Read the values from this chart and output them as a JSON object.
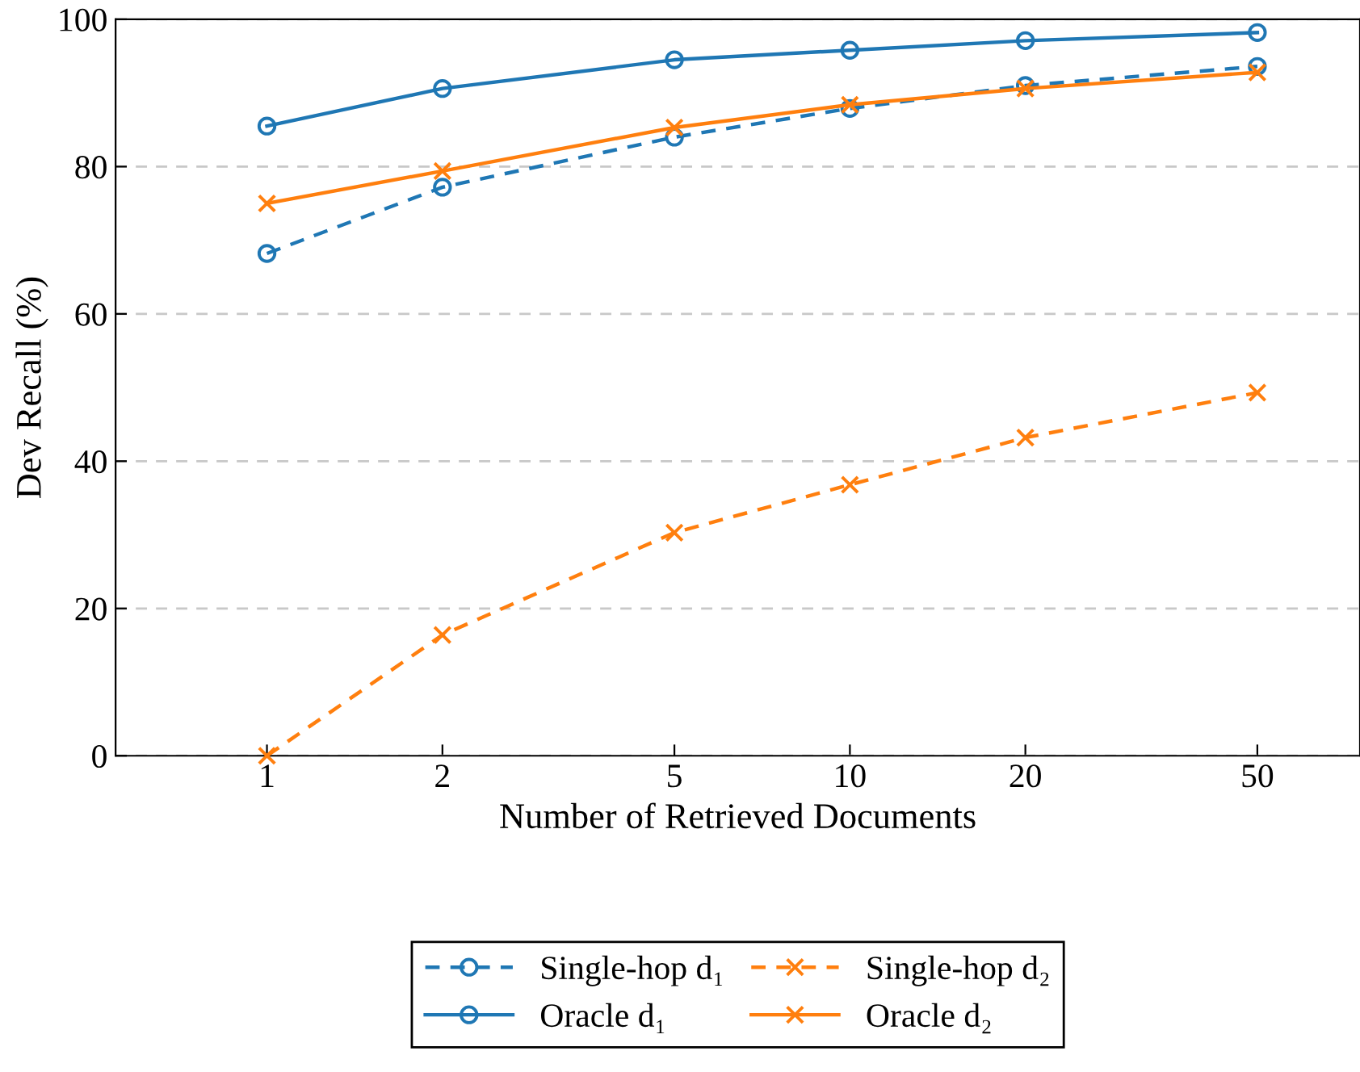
{
  "chart_data": {
    "type": "line",
    "xlabel": "Number of Retrieved Documents",
    "ylabel": "Dev Recall (%)",
    "x": [
      1,
      2,
      5,
      10,
      20,
      50
    ],
    "log": "x",
    "xlim": [
      0.55,
      75
    ],
    "xticks": [
      1,
      2,
      5,
      10,
      20,
      50
    ],
    "ylim": [
      0,
      100
    ],
    "yticks": [
      0,
      20,
      40,
      60,
      80,
      100
    ],
    "grid": "y",
    "legend": "bottom",
    "series": [
      {
        "name": "Single-hop d₁",
        "color": "#1f77b4",
        "marker": "circle",
        "line_style": "dashed",
        "values": [
          68.2,
          77.2,
          84.0,
          87.9,
          91.0,
          93.6
        ]
      },
      {
        "name": "Single-hop d₂",
        "color": "#ff7f0e",
        "marker": "cross",
        "line_style": "dashed",
        "values": [
          0,
          16.4,
          30.3,
          36.8,
          43.2,
          49.3
        ]
      },
      {
        "name": "Oracle d₁",
        "color": "#1f77b4",
        "marker": "circle",
        "line_style": "solid",
        "values": [
          85.5,
          90.6,
          94.5,
          95.8,
          97.1,
          98.2
        ]
      },
      {
        "name": "Oracle d₂",
        "color": "#ff7f0e",
        "marker": "cross",
        "line_style": "solid",
        "values": [
          75.0,
          79.4,
          85.3,
          88.4,
          90.6,
          92.8
        ]
      }
    ]
  }
}
